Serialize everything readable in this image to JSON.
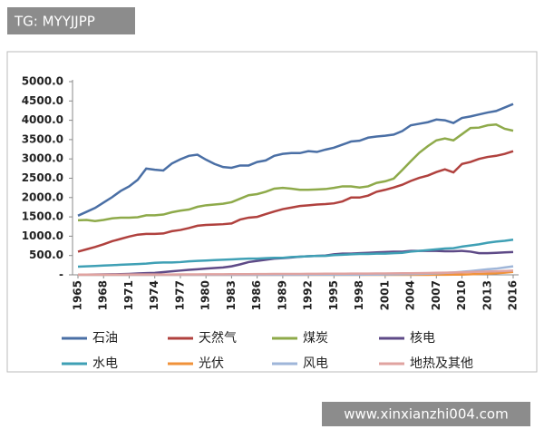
{
  "banner": "TG: MYYJJPP",
  "watermark": "www.xinxianzhi004.com",
  "chart_data": {
    "type": "line",
    "x": [
      1965,
      1966,
      1967,
      1968,
      1969,
      1970,
      1971,
      1972,
      1973,
      1974,
      1975,
      1976,
      1977,
      1978,
      1979,
      1980,
      1981,
      1982,
      1983,
      1984,
      1985,
      1986,
      1987,
      1988,
      1989,
      1990,
      1991,
      1992,
      1993,
      1994,
      1995,
      1996,
      1997,
      1998,
      1999,
      2000,
      2001,
      2002,
      2003,
      2004,
      2005,
      2006,
      2007,
      2008,
      2009,
      2010,
      2011,
      2012,
      2013,
      2014,
      2015,
      2016
    ],
    "xlim": [
      1965,
      2016
    ],
    "xticks": [
      1965,
      1968,
      1971,
      1974,
      1977,
      1980,
      1983,
      1986,
      1989,
      1992,
      1995,
      1998,
      2001,
      2004,
      2007,
      2010,
      2013,
      2016
    ],
    "ylim": [
      0,
      5000
    ],
    "yticks": [
      {
        "value": 0,
        "label": "-"
      },
      {
        "value": 500,
        "label": "500.0"
      },
      {
        "value": 1000,
        "label": "1000.0"
      },
      {
        "value": 1500,
        "label": "1500.0"
      },
      {
        "value": 2000,
        "label": "2000.0"
      },
      {
        "value": 2500,
        "label": "2500.0"
      },
      {
        "value": 3000,
        "label": "3000.0"
      },
      {
        "value": 3500,
        "label": "3500.0"
      },
      {
        "value": 4000,
        "label": "4000.0"
      },
      {
        "value": 4500,
        "label": "4500.0"
      },
      {
        "value": 5000,
        "label": "5000.0"
      }
    ],
    "series": [
      {
        "name": "石油",
        "color": "#4a6fa5",
        "values": [
          1530,
          1630,
          1730,
          1870,
          2010,
          2170,
          2290,
          2460,
          2750,
          2720,
          2700,
          2880,
          2990,
          3080,
          3110,
          2980,
          2870,
          2790,
          2770,
          2830,
          2830,
          2920,
          2960,
          3080,
          3130,
          3150,
          3150,
          3200,
          3180,
          3240,
          3290,
          3370,
          3450,
          3470,
          3550,
          3580,
          3600,
          3630,
          3720,
          3870,
          3910,
          3950,
          4020,
          4000,
          3930,
          4060,
          4100,
          4150,
          4200,
          4240,
          4330,
          4420
        ]
      },
      {
        "name": "天然气",
        "color": "#b0413e",
        "values": [
          600,
          660,
          720,
          790,
          870,
          930,
          990,
          1040,
          1060,
          1060,
          1070,
          1130,
          1160,
          1210,
          1270,
          1290,
          1300,
          1310,
          1330,
          1430,
          1480,
          1500,
          1570,
          1640,
          1700,
          1740,
          1780,
          1800,
          1820,
          1830,
          1850,
          1900,
          2000,
          2000,
          2050,
          2150,
          2200,
          2260,
          2330,
          2430,
          2510,
          2570,
          2660,
          2730,
          2650,
          2870,
          2920,
          3000,
          3050,
          3080,
          3130,
          3200
        ]
      },
      {
        "name": "煤炭",
        "color": "#8eaa4a",
        "values": [
          1410,
          1420,
          1390,
          1420,
          1460,
          1480,
          1480,
          1490,
          1540,
          1540,
          1560,
          1620,
          1660,
          1690,
          1760,
          1800,
          1820,
          1840,
          1880,
          1970,
          2060,
          2090,
          2150,
          2230,
          2250,
          2230,
          2200,
          2200,
          2210,
          2220,
          2250,
          2290,
          2290,
          2260,
          2290,
          2380,
          2420,
          2490,
          2710,
          2940,
          3160,
          3330,
          3480,
          3530,
          3480,
          3640,
          3800,
          3810,
          3870,
          3890,
          3780,
          3730
        ]
      },
      {
        "name": "核电",
        "color": "#5e4a87",
        "values": [
          5,
          7,
          9,
          11,
          14,
          18,
          25,
          35,
          45,
          50,
          70,
          90,
          110,
          130,
          145,
          160,
          175,
          190,
          220,
          270,
          330,
          360,
          390,
          420,
          430,
          450,
          470,
          480,
          490,
          500,
          530,
          550,
          550,
          560,
          570,
          580,
          590,
          600,
          600,
          620,
          620,
          620,
          620,
          610,
          610,
          620,
          600,
          560,
          560,
          570,
          580,
          590
        ]
      },
      {
        "name": "水电",
        "color": "#3fa0b5",
        "values": [
          210,
          220,
          230,
          240,
          250,
          260,
          270,
          280,
          290,
          310,
          320,
          320,
          330,
          350,
          360,
          370,
          380,
          390,
          400,
          410,
          420,
          420,
          430,
          440,
          440,
          460,
          470,
          480,
          490,
          490,
          510,
          520,
          530,
          540,
          540,
          550,
          550,
          560,
          570,
          600,
          620,
          640,
          660,
          680,
          690,
          730,
          760,
          790,
          830,
          860,
          880,
          910
        ]
      },
      {
        "name": "光伏",
        "color": "#f0923a",
        "values": [
          0,
          0,
          0,
          0,
          0,
          0,
          0,
          0,
          0,
          0,
          0,
          0,
          0,
          0,
          0,
          0,
          0,
          0,
          0,
          0,
          0,
          0,
          0,
          0,
          0,
          0,
          0,
          0,
          0,
          0,
          0,
          0,
          0,
          0,
          0,
          0,
          0,
          0,
          0,
          0,
          1,
          1,
          2,
          3,
          5,
          7,
          14,
          22,
          30,
          40,
          55,
          75
        ]
      },
      {
        "name": "风电",
        "color": "#9fb6d9",
        "values": [
          0,
          0,
          0,
          0,
          0,
          0,
          0,
          0,
          0,
          0,
          0,
          0,
          0,
          0,
          0,
          0,
          0,
          0,
          0,
          0,
          1,
          1,
          1,
          1,
          1,
          1,
          1,
          2,
          2,
          2,
          2,
          3,
          3,
          4,
          5,
          7,
          9,
          11,
          14,
          19,
          24,
          30,
          39,
          50,
          63,
          78,
          98,
          120,
          145,
          160,
          190,
          220
        ]
      },
      {
        "name": "地热及其他",
        "color": "#e0a3a0",
        "values": [
          5,
          5,
          6,
          6,
          7,
          7,
          8,
          8,
          9,
          9,
          10,
          10,
          11,
          12,
          13,
          14,
          15,
          16,
          17,
          18,
          19,
          20,
          21,
          22,
          23,
          24,
          25,
          26,
          27,
          28,
          29,
          30,
          31,
          32,
          33,
          35,
          36,
          38,
          40,
          42,
          45,
          48,
          52,
          56,
          60,
          66,
          72,
          78,
          85,
          92,
          100,
          108
        ]
      }
    ]
  }
}
